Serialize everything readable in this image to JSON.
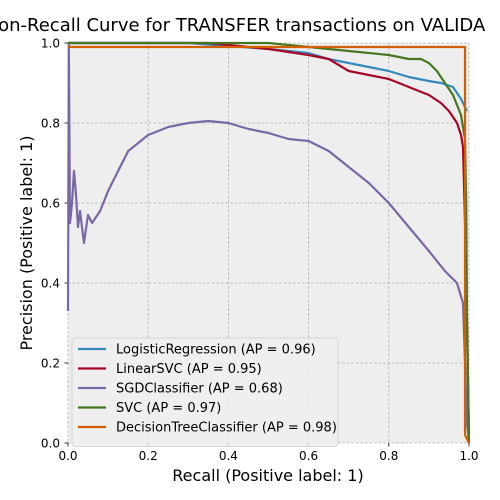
{
  "chart_data": {
    "type": "line",
    "title": "ision-Recall Curve for TRANSFER transactions on VALIDA",
    "xlabel": "Recall (Positive label: 1)",
    "ylabel": "Precision (Positive label: 1)",
    "xlim": [
      0,
      1
    ],
    "ylim": [
      0,
      1
    ],
    "xticks": [
      "0.0",
      "0.2",
      "0.4",
      "0.6",
      "0.8",
      "1.0"
    ],
    "yticks": [
      "0.0",
      "0.2",
      "0.4",
      "0.6",
      "0.8",
      "1.0"
    ],
    "grid": true,
    "legend_position": "lower-left",
    "series": [
      {
        "name": "LogisticRegression (AP = 0.96)",
        "color": "#348ABD",
        "points": [
          [
            0,
            1
          ],
          [
            0.3,
            1
          ],
          [
            0.5,
            0.985
          ],
          [
            0.6,
            0.975
          ],
          [
            0.65,
            0.96
          ],
          [
            0.7,
            0.95
          ],
          [
            0.75,
            0.94
          ],
          [
            0.8,
            0.93
          ],
          [
            0.85,
            0.915
          ],
          [
            0.9,
            0.905
          ],
          [
            0.93,
            0.9
          ],
          [
            0.96,
            0.89
          ],
          [
            0.98,
            0.86
          ],
          [
            0.99,
            0.84
          ],
          [
            0.995,
            0.83
          ]
        ]
      },
      {
        "name": "LinearSVC (AP = 0.95)",
        "color": "#A60628",
        "points": [
          [
            0,
            1
          ],
          [
            0.35,
            1
          ],
          [
            0.5,
            0.985
          ],
          [
            0.6,
            0.97
          ],
          [
            0.65,
            0.96
          ],
          [
            0.7,
            0.93
          ],
          [
            0.75,
            0.92
          ],
          [
            0.8,
            0.91
          ],
          [
            0.85,
            0.89
          ],
          [
            0.9,
            0.87
          ],
          [
            0.93,
            0.85
          ],
          [
            0.95,
            0.83
          ],
          [
            0.97,
            0.8
          ],
          [
            0.98,
            0.77
          ],
          [
            0.985,
            0.74
          ],
          [
            0.99,
            0.55
          ],
          [
            0.995,
            0.3
          ],
          [
            1.0,
            0.02
          ]
        ]
      },
      {
        "name": "SGDClassifier (AP = 0.68)",
        "color": "#7A68A6",
        "points": [
          [
            0.0,
            0.33
          ],
          [
            0.002,
            1.0
          ],
          [
            0.005,
            0.55
          ],
          [
            0.01,
            0.6
          ],
          [
            0.015,
            0.68
          ],
          [
            0.02,
            0.62
          ],
          [
            0.025,
            0.54
          ],
          [
            0.03,
            0.58
          ],
          [
            0.04,
            0.5
          ],
          [
            0.05,
            0.57
          ],
          [
            0.06,
            0.55
          ],
          [
            0.08,
            0.58
          ],
          [
            0.1,
            0.63
          ],
          [
            0.12,
            0.67
          ],
          [
            0.15,
            0.73
          ],
          [
            0.2,
            0.77
          ],
          [
            0.25,
            0.79
          ],
          [
            0.3,
            0.8
          ],
          [
            0.35,
            0.805
          ],
          [
            0.4,
            0.8
          ],
          [
            0.45,
            0.785
          ],
          [
            0.5,
            0.775
          ],
          [
            0.55,
            0.76
          ],
          [
            0.6,
            0.755
          ],
          [
            0.65,
            0.73
          ],
          [
            0.7,
            0.69
          ],
          [
            0.75,
            0.65
          ],
          [
            0.8,
            0.6
          ],
          [
            0.85,
            0.54
          ],
          [
            0.9,
            0.48
          ],
          [
            0.94,
            0.43
          ],
          [
            0.97,
            0.4
          ],
          [
            0.985,
            0.35
          ],
          [
            0.99,
            0.2
          ],
          [
            0.995,
            0.05
          ],
          [
            1.0,
            0.0
          ]
        ]
      },
      {
        "name": "SVC (AP = 0.97)",
        "color": "#467821",
        "points": [
          [
            0,
            1
          ],
          [
            0.5,
            1
          ],
          [
            0.6,
            0.99
          ],
          [
            0.7,
            0.98
          ],
          [
            0.8,
            0.97
          ],
          [
            0.85,
            0.96
          ],
          [
            0.88,
            0.96
          ],
          [
            0.9,
            0.95
          ],
          [
            0.92,
            0.93
          ],
          [
            0.94,
            0.9
          ],
          [
            0.96,
            0.87
          ],
          [
            0.98,
            0.82
          ],
          [
            0.99,
            0.76
          ],
          [
            0.993,
            0.6
          ],
          [
            0.995,
            0.3
          ],
          [
            1.0,
            0.0
          ]
        ]
      },
      {
        "name": "DecisionTreeClassifier (AP = 0.98)",
        "color": "#D55E00",
        "points": [
          [
            0,
            0.99
          ],
          [
            0.01,
            0.99
          ],
          [
            0.5,
            0.99
          ],
          [
            0.99,
            0.99
          ],
          [
            0.99,
            0.02
          ],
          [
            1.0,
            0.0
          ]
        ]
      }
    ]
  }
}
